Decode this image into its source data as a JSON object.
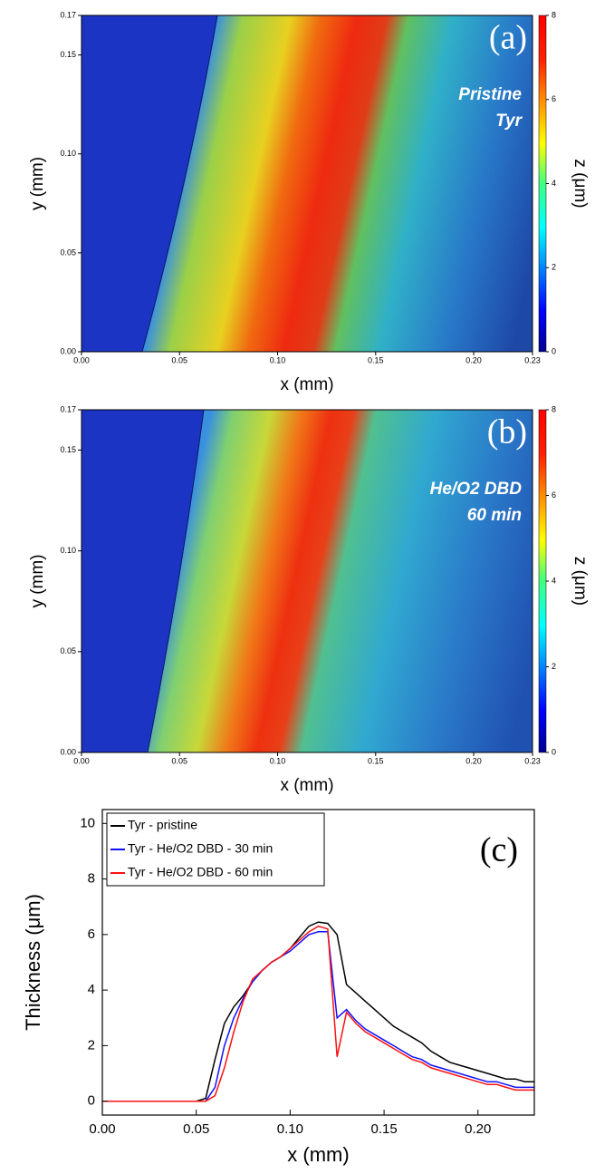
{
  "chart_data": [
    {
      "type": "heatmap",
      "panel_label": "(a)",
      "annotations": [
        "Pristine",
        "Tyr"
      ],
      "xlabel": "x (mm)",
      "ylabel": "y (mm)",
      "zlabel": "z (μm)",
      "xlim": [
        0,
        0.23
      ],
      "ylim": [
        0,
        0.17
      ],
      "zlim": [
        0,
        8
      ],
      "xticks": [
        {
          "value": 0,
          "label": "0.00"
        },
        0.05,
        {
          "value": 0.1,
          "label": "0.10"
        },
        0.15,
        {
          "value": 0.2,
          "label": "0.20"
        },
        0.23
      ],
      "yticks": [
        {
          "value": 0,
          "label": "0.00"
        },
        0.05,
        {
          "value": 0.1,
          "label": "0.10"
        },
        0.15,
        0.17
      ],
      "zticks": [
        0,
        2,
        4,
        6,
        8
      ],
      "colormap": "jet"
    },
    {
      "type": "heatmap",
      "panel_label": "(b)",
      "annotations": [
        "He/O2 DBD",
        "60 min"
      ],
      "xlabel": "x (mm)",
      "ylabel": "y (mm)",
      "zlabel": "z (μm)",
      "xlim": [
        0,
        0.23
      ],
      "ylim": [
        0,
        0.17
      ],
      "zlim": [
        0,
        8
      ],
      "xticks": [
        {
          "value": 0,
          "label": "0.00"
        },
        0.05,
        {
          "value": 0.1,
          "label": "0.10"
        },
        0.15,
        {
          "value": 0.2,
          "label": "0.20"
        },
        0.23
      ],
      "yticks": [
        {
          "value": 0,
          "label": "0.00"
        },
        0.05,
        {
          "value": 0.1,
          "label": "0.10"
        },
        0.15,
        0.17
      ],
      "zticks": [
        0,
        2,
        4,
        6,
        8
      ],
      "colormap": "jet"
    },
    {
      "type": "line",
      "panel_label": "(c)",
      "xlabel": "x (mm)",
      "ylabel": "Thickness (μm)",
      "xlim": [
        0,
        0.23
      ],
      "ylim": [
        -0.5,
        10.5
      ],
      "xticks": [
        {
          "value": 0,
          "label": "0.00"
        },
        0.05,
        {
          "value": 0.1,
          "label": "0.10"
        },
        0.15,
        {
          "value": 0.2,
          "label": "0.20"
        }
      ],
      "yticks": [
        0,
        2,
        4,
        6,
        8,
        10
      ],
      "legend": "upper left",
      "x": [
        0,
        0.005,
        0.01,
        0.015,
        0.02,
        0.025,
        0.03,
        0.035,
        0.04,
        0.045,
        0.05,
        0.055,
        0.06,
        0.065,
        0.07,
        0.075,
        0.08,
        0.085,
        0.09,
        0.095,
        0.1,
        0.105,
        0.11,
        0.115,
        0.12,
        0.125,
        0.13,
        0.135,
        0.14,
        0.145,
        0.15,
        0.155,
        0.16,
        0.165,
        0.17,
        0.175,
        0.18,
        0.185,
        0.19,
        0.195,
        0.2,
        0.205,
        0.21,
        0.215,
        0.22,
        0.225,
        0.23
      ],
      "series": [
        {
          "name": "Tyr - pristine",
          "color": "#000000",
          "values": [
            0,
            0,
            0,
            0,
            0,
            0,
            0,
            0,
            0,
            0,
            0,
            0.1,
            1.5,
            2.8,
            3.4,
            3.8,
            4.3,
            4.7,
            5.0,
            5.2,
            5.5,
            5.9,
            6.3,
            6.45,
            6.4,
            6.0,
            4.2,
            3.9,
            3.6,
            3.3,
            3.0,
            2.7,
            2.5,
            2.3,
            2.1,
            1.8,
            1.6,
            1.4,
            1.3,
            1.2,
            1.1,
            1.0,
            0.9,
            0.8,
            0.8,
            0.7,
            0.7
          ]
        },
        {
          "name": "Tyr - He/O2 DBD - 30 min",
          "color": "#1010ff",
          "values": [
            0,
            0,
            0,
            0,
            0,
            0,
            0,
            0,
            0,
            0,
            0,
            0,
            0.5,
            2.0,
            3.0,
            3.7,
            4.3,
            4.7,
            5.0,
            5.2,
            5.4,
            5.7,
            6.0,
            6.1,
            6.1,
            3.0,
            3.3,
            2.9,
            2.6,
            2.4,
            2.2,
            2.0,
            1.8,
            1.6,
            1.5,
            1.3,
            1.2,
            1.1,
            1.0,
            0.9,
            0.8,
            0.7,
            0.7,
            0.6,
            0.5,
            0.5,
            0.5
          ]
        },
        {
          "name": "Tyr - He/O2 DBD - 60 min",
          "color": "#ff1010",
          "values": [
            0,
            0,
            0,
            0,
            0,
            0,
            0,
            0,
            0,
            0,
            0,
            0,
            0.2,
            1.2,
            2.5,
            3.6,
            4.4,
            4.7,
            5.0,
            5.2,
            5.5,
            5.8,
            6.1,
            6.3,
            6.2,
            1.6,
            3.2,
            2.8,
            2.5,
            2.3,
            2.1,
            1.9,
            1.7,
            1.5,
            1.4,
            1.2,
            1.1,
            1.0,
            0.9,
            0.8,
            0.7,
            0.6,
            0.6,
            0.5,
            0.4,
            0.4,
            0.4
          ]
        }
      ]
    }
  ]
}
